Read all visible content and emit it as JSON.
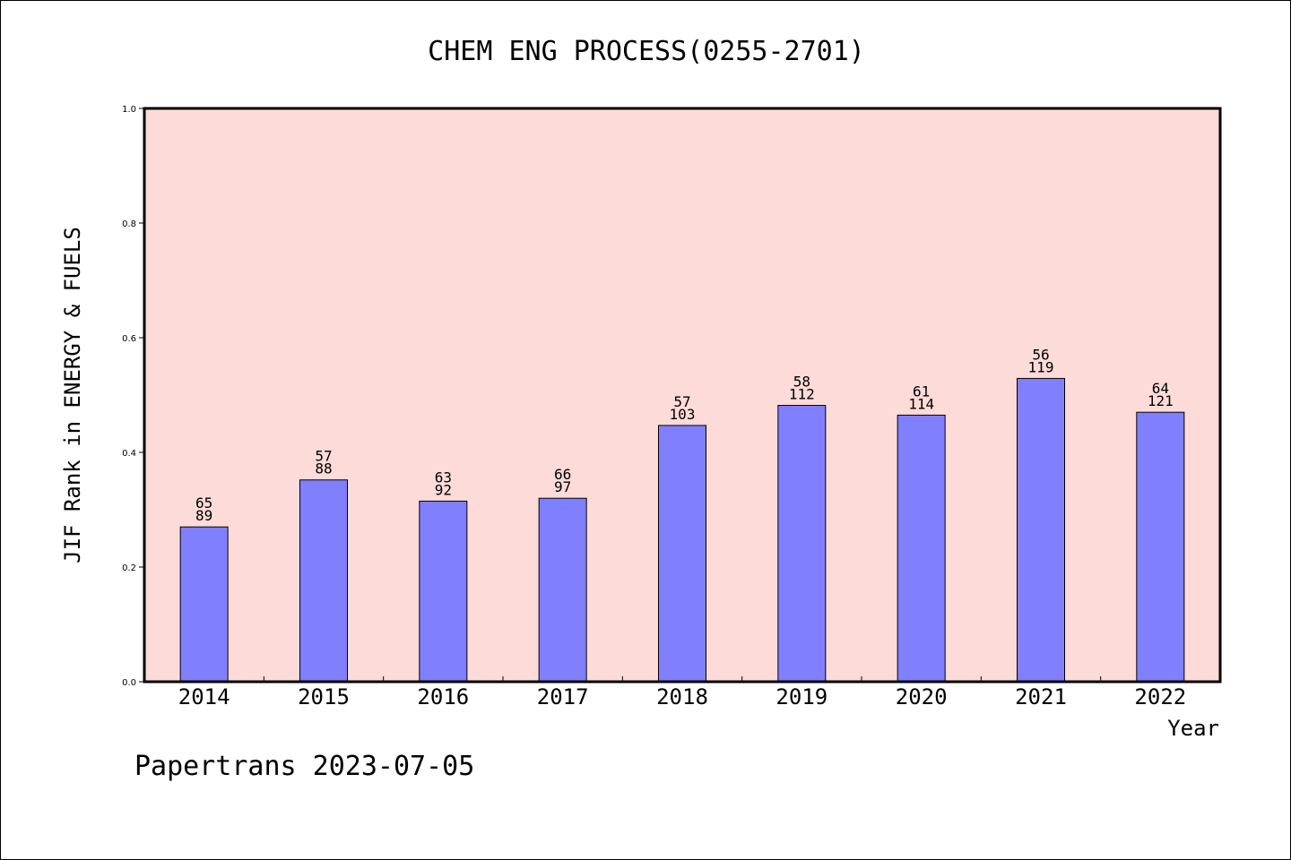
{
  "chart_data": {
    "type": "bar",
    "title": "CHEM ENG PROCESS(0255-2701)",
    "xlabel": "Year",
    "ylabel": "JIF Rank in ENERGY & FUELS",
    "ylim": [
      0,
      1.0
    ],
    "yticks": [
      "0.0",
      "0.2",
      "0.4",
      "0.6",
      "0.8",
      "1.0"
    ],
    "categories": [
      "2014",
      "2015",
      "2016",
      "2017",
      "2018",
      "2019",
      "2020",
      "2021",
      "2022"
    ],
    "values": [
      0.27,
      0.352,
      0.315,
      0.32,
      0.447,
      0.482,
      0.465,
      0.529,
      0.47
    ],
    "rank": [
      "65",
      "57",
      "63",
      "66",
      "57",
      "58",
      "61",
      "56",
      "64"
    ],
    "total": [
      "89",
      "88",
      "92",
      "97",
      "103",
      "112",
      "114",
      "119",
      "121"
    ],
    "plot_background": "#fddbd8",
    "bar_color": "#8080ff",
    "grid": false,
    "legend": "none"
  },
  "footer": {
    "text": "Papertrans 2023-07-05"
  }
}
